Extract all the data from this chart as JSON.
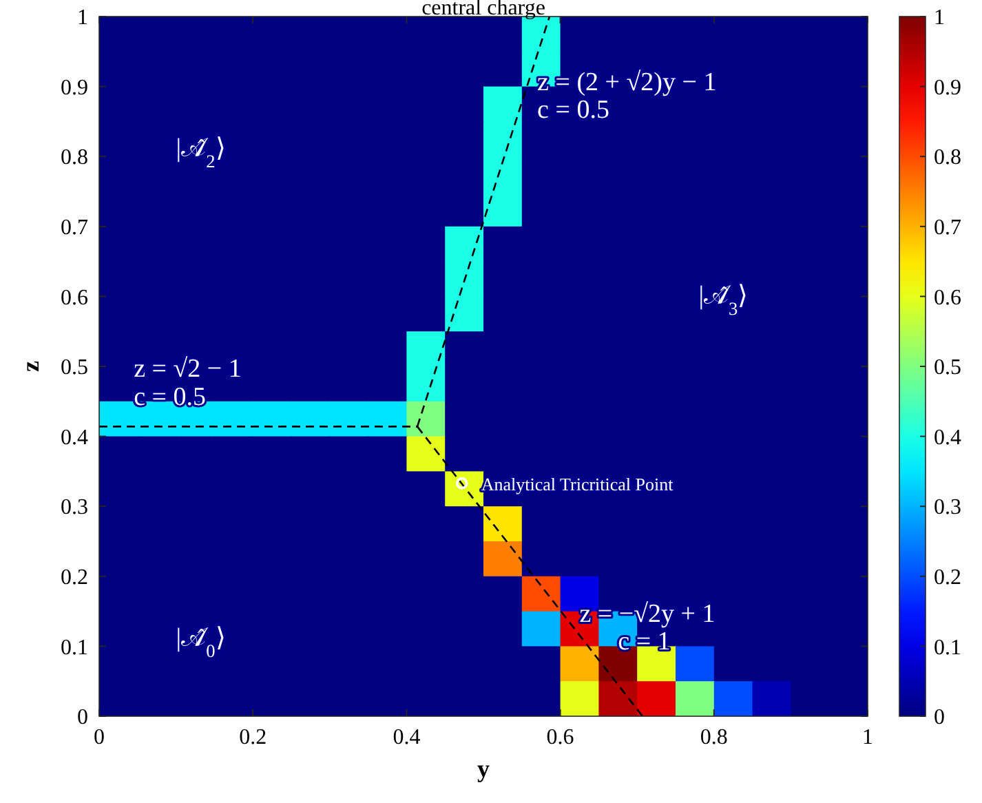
{
  "chart_data": {
    "type": "heatmap",
    "title": "central charge",
    "xlabel": "y",
    "ylabel": "z",
    "xlim": [
      0,
      1
    ],
    "ylim": [
      0,
      1
    ],
    "xticks": [
      0,
      0.2,
      0.4,
      0.6,
      0.8,
      1
    ],
    "yticks": [
      0,
      0.1,
      0.2,
      0.3,
      0.4,
      0.5,
      0.6,
      0.7,
      0.8,
      0.9,
      1
    ],
    "clim": [
      0,
      1
    ],
    "cticks": [
      0,
      0.1,
      0.2,
      0.3,
      0.4,
      0.5,
      0.6,
      0.7,
      0.8,
      0.9,
      1
    ],
    "cells": [
      [
        0,
        0,
        0,
        0,
        0,
        0,
        0,
        0,
        0,
        0,
        0,
        0.4,
        0,
        0,
        0,
        0,
        0,
        0,
        0,
        0
      ],
      [
        0,
        0,
        0,
        0,
        0,
        0,
        0,
        0,
        0,
        0,
        0,
        0.4,
        0,
        0,
        0,
        0,
        0,
        0,
        0,
        0
      ],
      [
        0,
        0,
        0,
        0,
        0,
        0,
        0,
        0,
        0,
        0,
        0.4,
        0,
        0,
        0,
        0,
        0,
        0,
        0,
        0,
        0
      ],
      [
        0,
        0,
        0,
        0,
        0,
        0,
        0,
        0,
        0,
        0,
        0.4,
        0,
        0,
        0,
        0,
        0,
        0,
        0,
        0,
        0
      ],
      [
        0,
        0,
        0,
        0,
        0,
        0,
        0,
        0,
        0,
        0,
        0.4,
        0,
        0,
        0,
        0,
        0,
        0,
        0,
        0,
        0
      ],
      [
        0,
        0,
        0,
        0,
        0,
        0,
        0,
        0,
        0,
        0,
        0.4,
        0,
        0,
        0,
        0,
        0,
        0,
        0,
        0,
        0
      ],
      [
        0,
        0,
        0,
        0,
        0,
        0,
        0,
        0,
        0,
        0.4,
        0,
        0,
        0,
        0,
        0,
        0,
        0,
        0,
        0,
        0
      ],
      [
        0,
        0,
        0,
        0,
        0,
        0,
        0,
        0,
        0,
        0.4,
        0,
        0,
        0,
        0,
        0,
        0,
        0,
        0,
        0,
        0
      ],
      [
        0,
        0,
        0,
        0,
        0,
        0,
        0,
        0,
        0,
        0.4,
        0,
        0,
        0,
        0,
        0,
        0,
        0,
        0,
        0,
        0
      ],
      [
        0,
        0,
        0,
        0,
        0,
        0,
        0,
        0,
        0.4,
        0,
        0,
        0,
        0,
        0,
        0,
        0,
        0,
        0,
        0,
        0
      ],
      [
        0,
        0,
        0,
        0,
        0,
        0,
        0,
        0,
        0.4,
        0,
        0,
        0,
        0,
        0,
        0,
        0,
        0,
        0,
        0,
        0
      ],
      [
        0.35,
        0.35,
        0.35,
        0.35,
        0.35,
        0.35,
        0.35,
        0.35,
        0.5,
        0,
        0,
        0,
        0,
        0,
        0,
        0,
        0,
        0,
        0,
        0
      ],
      [
        0,
        0,
        0,
        0,
        0,
        0,
        0,
        0,
        0.6,
        0,
        0,
        0,
        0,
        0,
        0,
        0,
        0,
        0,
        0,
        0
      ],
      [
        0,
        0,
        0,
        0,
        0,
        0,
        0,
        0,
        0,
        0.6,
        0,
        0,
        0,
        0,
        0,
        0,
        0,
        0,
        0,
        0
      ],
      [
        0,
        0,
        0,
        0,
        0,
        0,
        0,
        0,
        0,
        0,
        0.65,
        0,
        0,
        0,
        0,
        0,
        0,
        0,
        0,
        0
      ],
      [
        0,
        0,
        0,
        0,
        0,
        0,
        0,
        0,
        0,
        0,
        0.75,
        0,
        0,
        0,
        0,
        0,
        0,
        0,
        0,
        0
      ],
      [
        0,
        0,
        0,
        0,
        0,
        0,
        0,
        0,
        0,
        0,
        0,
        0.8,
        0.1,
        0,
        0,
        0,
        0,
        0,
        0,
        0
      ],
      [
        0,
        0,
        0,
        0,
        0,
        0,
        0,
        0,
        0,
        0,
        0,
        0.3,
        0.9,
        0.3,
        0,
        0,
        0,
        0,
        0,
        0
      ],
      [
        0,
        0,
        0,
        0,
        0,
        0,
        0,
        0,
        0,
        0,
        0,
        0,
        0.7,
        1,
        0.6,
        0.2,
        0,
        0,
        0,
        0
      ],
      [
        0,
        0,
        0,
        0,
        0,
        0,
        0,
        0,
        0,
        0,
        0,
        0,
        0.6,
        0.95,
        0.9,
        0.5,
        0.2,
        0.05,
        0,
        0
      ]
    ],
    "series": [
      {
        "type": "line",
        "color": "#000000",
        "line_style": "dashed",
        "marker": "none",
        "x": [
          0,
          0.414
        ],
        "values": [
          0.414,
          0.414
        ]
      },
      {
        "type": "line",
        "color": "#000000",
        "line_style": "dashed",
        "marker": "none",
        "x": [
          0.414,
          0.586
        ],
        "values": [
          0.414,
          1
        ]
      },
      {
        "type": "line",
        "color": "#000000",
        "line_style": "dashed",
        "marker": "none",
        "x": [
          0.414,
          0.707
        ],
        "values": [
          0.414,
          0
        ]
      },
      {
        "type": "scatter",
        "color": "#ffffff",
        "marker": "circle",
        "x": [
          0.472
        ],
        "values": [
          0.333
        ]
      }
    ],
    "annotations": [
      {
        "text": "Analytical Tricritical Point",
        "x": 0.472,
        "y": 0.333
      },
      "z = (2 + √2)y − 1",
      "c = 0.5",
      "|𝒜̂$_{2}$⟩",
      "|𝒜̂$_{3}$⟩",
      "z = √2 − 1",
      "c = 0.5",
      "|𝒜̂$_{0}$⟩",
      "z = −√2y + 1",
      "c = 1"
    ]
  }
}
